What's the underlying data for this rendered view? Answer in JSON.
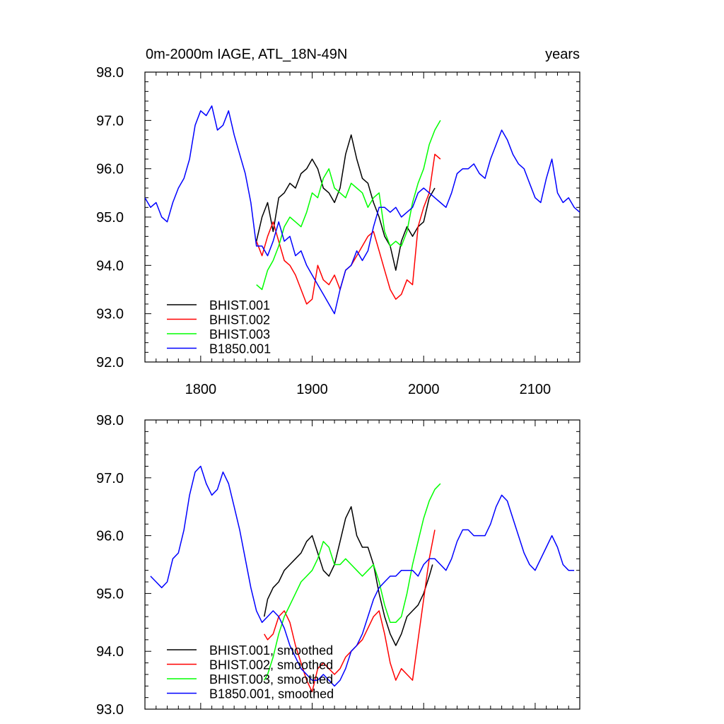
{
  "chart_data": [
    {
      "type": "line",
      "title": "0m-2000m IAGE, ATL_18N-49N",
      "units_label": "years",
      "xlim": [
        1750,
        2140
      ],
      "ylim": [
        92.0,
        98.0
      ],
      "xticks": [
        1800,
        1900,
        2000,
        2100
      ],
      "xtick_labels": [
        "1800",
        "1900",
        "2000",
        "2100"
      ],
      "yticks": [
        92,
        93,
        94,
        95,
        96,
        97,
        98
      ],
      "ytick_labels": [
        "92.0",
        "93.0",
        "94.0",
        "95.0",
        "96.0",
        "97.0",
        "98.0"
      ],
      "grid": false,
      "legend_position": "bottom-left",
      "series": [
        {
          "name": "BHIST.001",
          "color": "#000000",
          "x": [
            1850,
            1855,
            1860,
            1865,
            1870,
            1875,
            1880,
            1885,
            1890,
            1895,
            1900,
            1905,
            1910,
            1915,
            1920,
            1925,
            1930,
            1935,
            1940,
            1945,
            1950,
            1955,
            1960,
            1965,
            1970,
            1975,
            1980,
            1985,
            1990,
            1995,
            2000,
            2005,
            2010
          ],
          "y": [
            94.5,
            95.0,
            95.3,
            94.7,
            95.4,
            95.5,
            95.7,
            95.6,
            95.9,
            96.0,
            96.2,
            96.0,
            95.6,
            95.5,
            95.3,
            95.6,
            96.3,
            96.7,
            96.2,
            95.8,
            95.7,
            95.3,
            95.0,
            94.6,
            94.4,
            93.9,
            94.5,
            94.8,
            94.6,
            94.8,
            94.9,
            95.4,
            95.6
          ]
        },
        {
          "name": "BHIST.002",
          "color": "#ff0000",
          "x": [
            1850,
            1855,
            1860,
            1865,
            1870,
            1875,
            1880,
            1885,
            1890,
            1895,
            1900,
            1905,
            1910,
            1915,
            1920,
            1925,
            1930,
            1935,
            1940,
            1945,
            1950,
            1955,
            1960,
            1965,
            1970,
            1975,
            1980,
            1985,
            1990,
            1995,
            2000,
            2005,
            2010,
            2015
          ],
          "y": [
            94.5,
            94.2,
            94.6,
            94.9,
            94.5,
            94.1,
            94.0,
            93.8,
            93.5,
            93.2,
            93.3,
            94.0,
            93.7,
            93.6,
            93.8,
            93.5,
            93.9,
            94.0,
            94.2,
            94.4,
            94.6,
            94.7,
            94.3,
            93.9,
            93.5,
            93.3,
            93.4,
            93.7,
            93.6,
            94.8,
            95.2,
            95.5,
            96.3,
            96.2
          ]
        },
        {
          "name": "BHIST.003",
          "color": "#00ff00",
          "x": [
            1850,
            1855,
            1860,
            1865,
            1870,
            1875,
            1880,
            1885,
            1890,
            1895,
            1900,
            1905,
            1910,
            1915,
            1920,
            1925,
            1930,
            1935,
            1940,
            1945,
            1950,
            1955,
            1960,
            1965,
            1970,
            1975,
            1980,
            1985,
            1990,
            1995,
            2000,
            2005,
            2010,
            2015
          ],
          "y": [
            93.6,
            93.5,
            93.9,
            94.1,
            94.4,
            94.8,
            95.0,
            94.9,
            94.8,
            95.1,
            95.5,
            95.4,
            95.8,
            96.0,
            95.6,
            95.5,
            95.4,
            95.7,
            95.6,
            95.5,
            95.2,
            95.4,
            95.5,
            94.7,
            94.4,
            94.5,
            94.4,
            94.7,
            95.3,
            95.7,
            96.0,
            96.5,
            96.8,
            97.0
          ]
        },
        {
          "name": "B1850.001",
          "color": "#0000ff",
          "x": [
            1750,
            1755,
            1760,
            1765,
            1770,
            1775,
            1780,
            1785,
            1790,
            1795,
            1800,
            1805,
            1810,
            1815,
            1820,
            1825,
            1830,
            1835,
            1840,
            1845,
            1850,
            1855,
            1860,
            1865,
            1870,
            1875,
            1880,
            1885,
            1890,
            1895,
            1900,
            1905,
            1910,
            1915,
            1920,
            1925,
            1930,
            1935,
            1940,
            1945,
            1950,
            1955,
            1960,
            1965,
            1970,
            1975,
            1980,
            1985,
            1990,
            1995,
            2000,
            2005,
            2010,
            2015,
            2020,
            2025,
            2030,
            2035,
            2040,
            2045,
            2050,
            2055,
            2060,
            2065,
            2070,
            2075,
            2080,
            2085,
            2090,
            2095,
            2100,
            2105,
            2110,
            2115,
            2120,
            2125,
            2130,
            2135,
            2140
          ],
          "y": [
            95.4,
            95.2,
            95.3,
            95.0,
            94.9,
            95.3,
            95.6,
            95.8,
            96.2,
            96.9,
            97.2,
            97.1,
            97.3,
            96.8,
            96.9,
            97.2,
            96.7,
            96.3,
            95.9,
            95.3,
            94.4,
            94.4,
            94.2,
            94.5,
            94.9,
            94.5,
            94.6,
            94.2,
            94.3,
            94.0,
            93.8,
            93.6,
            93.4,
            93.2,
            93.0,
            93.5,
            93.9,
            94.0,
            94.3,
            94.1,
            94.3,
            94.8,
            95.2,
            95.2,
            95.1,
            95.2,
            95.0,
            95.1,
            95.2,
            95.5,
            95.6,
            95.5,
            95.4,
            95.3,
            95.2,
            95.5,
            95.9,
            96.0,
            96.0,
            96.1,
            95.9,
            95.8,
            96.2,
            96.5,
            96.8,
            96.6,
            96.3,
            96.1,
            96.0,
            95.7,
            95.4,
            95.3,
            95.8,
            96.2,
            95.5,
            95.3,
            95.4,
            95.2,
            95.1
          ]
        }
      ]
    },
    {
      "type": "line",
      "xlim": [
        1750,
        2140
      ],
      "ylim": [
        93.0,
        98.0
      ],
      "xticks": [
        1800,
        1900,
        2000,
        2100
      ],
      "yticks": [
        93,
        94,
        95,
        96,
        97,
        98
      ],
      "ytick_labels": [
        "93.0",
        "94.0",
        "95.0",
        "96.0",
        "97.0",
        "98.0"
      ],
      "grid": false,
      "legend_position": "bottom-left",
      "series": [
        {
          "name": "BHIST.001, smoothed",
          "color": "#000000",
          "x": [
            1857,
            1860,
            1865,
            1870,
            1875,
            1880,
            1885,
            1890,
            1895,
            1900,
            1905,
            1910,
            1915,
            1920,
            1925,
            1930,
            1935,
            1940,
            1945,
            1950,
            1955,
            1960,
            1965,
            1970,
            1975,
            1980,
            1985,
            1990,
            1995,
            2000,
            2005,
            2008
          ],
          "y": [
            94.6,
            94.9,
            95.1,
            95.2,
            95.4,
            95.5,
            95.6,
            95.7,
            95.9,
            96.0,
            95.7,
            95.4,
            95.3,
            95.5,
            95.9,
            96.3,
            96.5,
            96.0,
            95.8,
            95.8,
            95.5,
            95.0,
            94.6,
            94.3,
            94.1,
            94.3,
            94.6,
            94.7,
            94.8,
            95.0,
            95.3,
            95.5
          ]
        },
        {
          "name": "BHIST.002, smoothed",
          "color": "#ff0000",
          "x": [
            1857,
            1860,
            1865,
            1870,
            1875,
            1880,
            1885,
            1890,
            1895,
            1900,
            1905,
            1910,
            1915,
            1920,
            1925,
            1930,
            1935,
            1940,
            1945,
            1950,
            1955,
            1960,
            1965,
            1970,
            1975,
            1980,
            1985,
            1990,
            1995,
            2000,
            2005,
            2010
          ],
          "y": [
            94.3,
            94.2,
            94.3,
            94.6,
            94.7,
            94.5,
            94.1,
            93.8,
            93.5,
            93.3,
            93.7,
            93.8,
            93.7,
            93.6,
            93.7,
            93.9,
            94.0,
            94.1,
            94.2,
            94.4,
            94.6,
            94.7,
            94.3,
            93.8,
            93.5,
            93.7,
            93.6,
            93.5,
            94.2,
            94.9,
            95.6,
            96.1
          ]
        },
        {
          "name": "BHIST.003, smoothed",
          "color": "#00ff00",
          "x": [
            1857,
            1860,
            1865,
            1870,
            1875,
            1880,
            1885,
            1890,
            1895,
            1900,
            1905,
            1910,
            1915,
            1920,
            1925,
            1930,
            1935,
            1940,
            1945,
            1950,
            1955,
            1960,
            1965,
            1970,
            1975,
            1980,
            1985,
            1990,
            1995,
            2000,
            2005,
            2010,
            2015
          ],
          "y": [
            93.5,
            93.6,
            93.9,
            94.3,
            94.6,
            94.8,
            95.0,
            95.2,
            95.3,
            95.4,
            95.6,
            95.9,
            95.8,
            95.5,
            95.5,
            95.6,
            95.5,
            95.4,
            95.3,
            95.4,
            95.5,
            95.2,
            94.8,
            94.5,
            94.5,
            94.6,
            95.0,
            95.5,
            95.9,
            96.3,
            96.6,
            96.8,
            96.9
          ]
        },
        {
          "name": "B1850.001, smoothed",
          "color": "#0000ff",
          "x": [
            1755,
            1760,
            1765,
            1770,
            1775,
            1780,
            1785,
            1790,
            1795,
            1800,
            1805,
            1810,
            1815,
            1820,
            1825,
            1830,
            1835,
            1840,
            1845,
            1850,
            1855,
            1860,
            1865,
            1870,
            1875,
            1880,
            1885,
            1890,
            1895,
            1900,
            1905,
            1910,
            1915,
            1920,
            1925,
            1930,
            1935,
            1940,
            1945,
            1950,
            1955,
            1960,
            1965,
            1970,
            1975,
            1980,
            1985,
            1990,
            1995,
            2000,
            2005,
            2010,
            2015,
            2020,
            2025,
            2030,
            2035,
            2040,
            2045,
            2050,
            2055,
            2060,
            2065,
            2070,
            2075,
            2080,
            2085,
            2090,
            2095,
            2100,
            2105,
            2110,
            2115,
            2120,
            2125,
            2130,
            2135
          ],
          "y": [
            95.3,
            95.2,
            95.1,
            95.2,
            95.6,
            95.7,
            96.1,
            96.7,
            97.1,
            97.2,
            96.9,
            96.7,
            96.8,
            97.1,
            96.9,
            96.5,
            96.1,
            95.6,
            95.1,
            94.7,
            94.5,
            94.6,
            94.7,
            94.6,
            94.4,
            94.1,
            93.9,
            93.7,
            93.6,
            93.5,
            93.5,
            93.6,
            93.5,
            93.4,
            93.5,
            93.7,
            94.0,
            94.1,
            94.3,
            94.6,
            94.9,
            95.1,
            95.2,
            95.3,
            95.3,
            95.4,
            95.4,
            95.4,
            95.3,
            95.5,
            95.6,
            95.6,
            95.5,
            95.4,
            95.6,
            95.9,
            96.1,
            96.1,
            96.0,
            96.0,
            96.0,
            96.2,
            96.5,
            96.7,
            96.6,
            96.3,
            96.0,
            95.7,
            95.5,
            95.4,
            95.6,
            95.8,
            96.0,
            95.8,
            95.5,
            95.4,
            95.4
          ]
        }
      ]
    }
  ]
}
